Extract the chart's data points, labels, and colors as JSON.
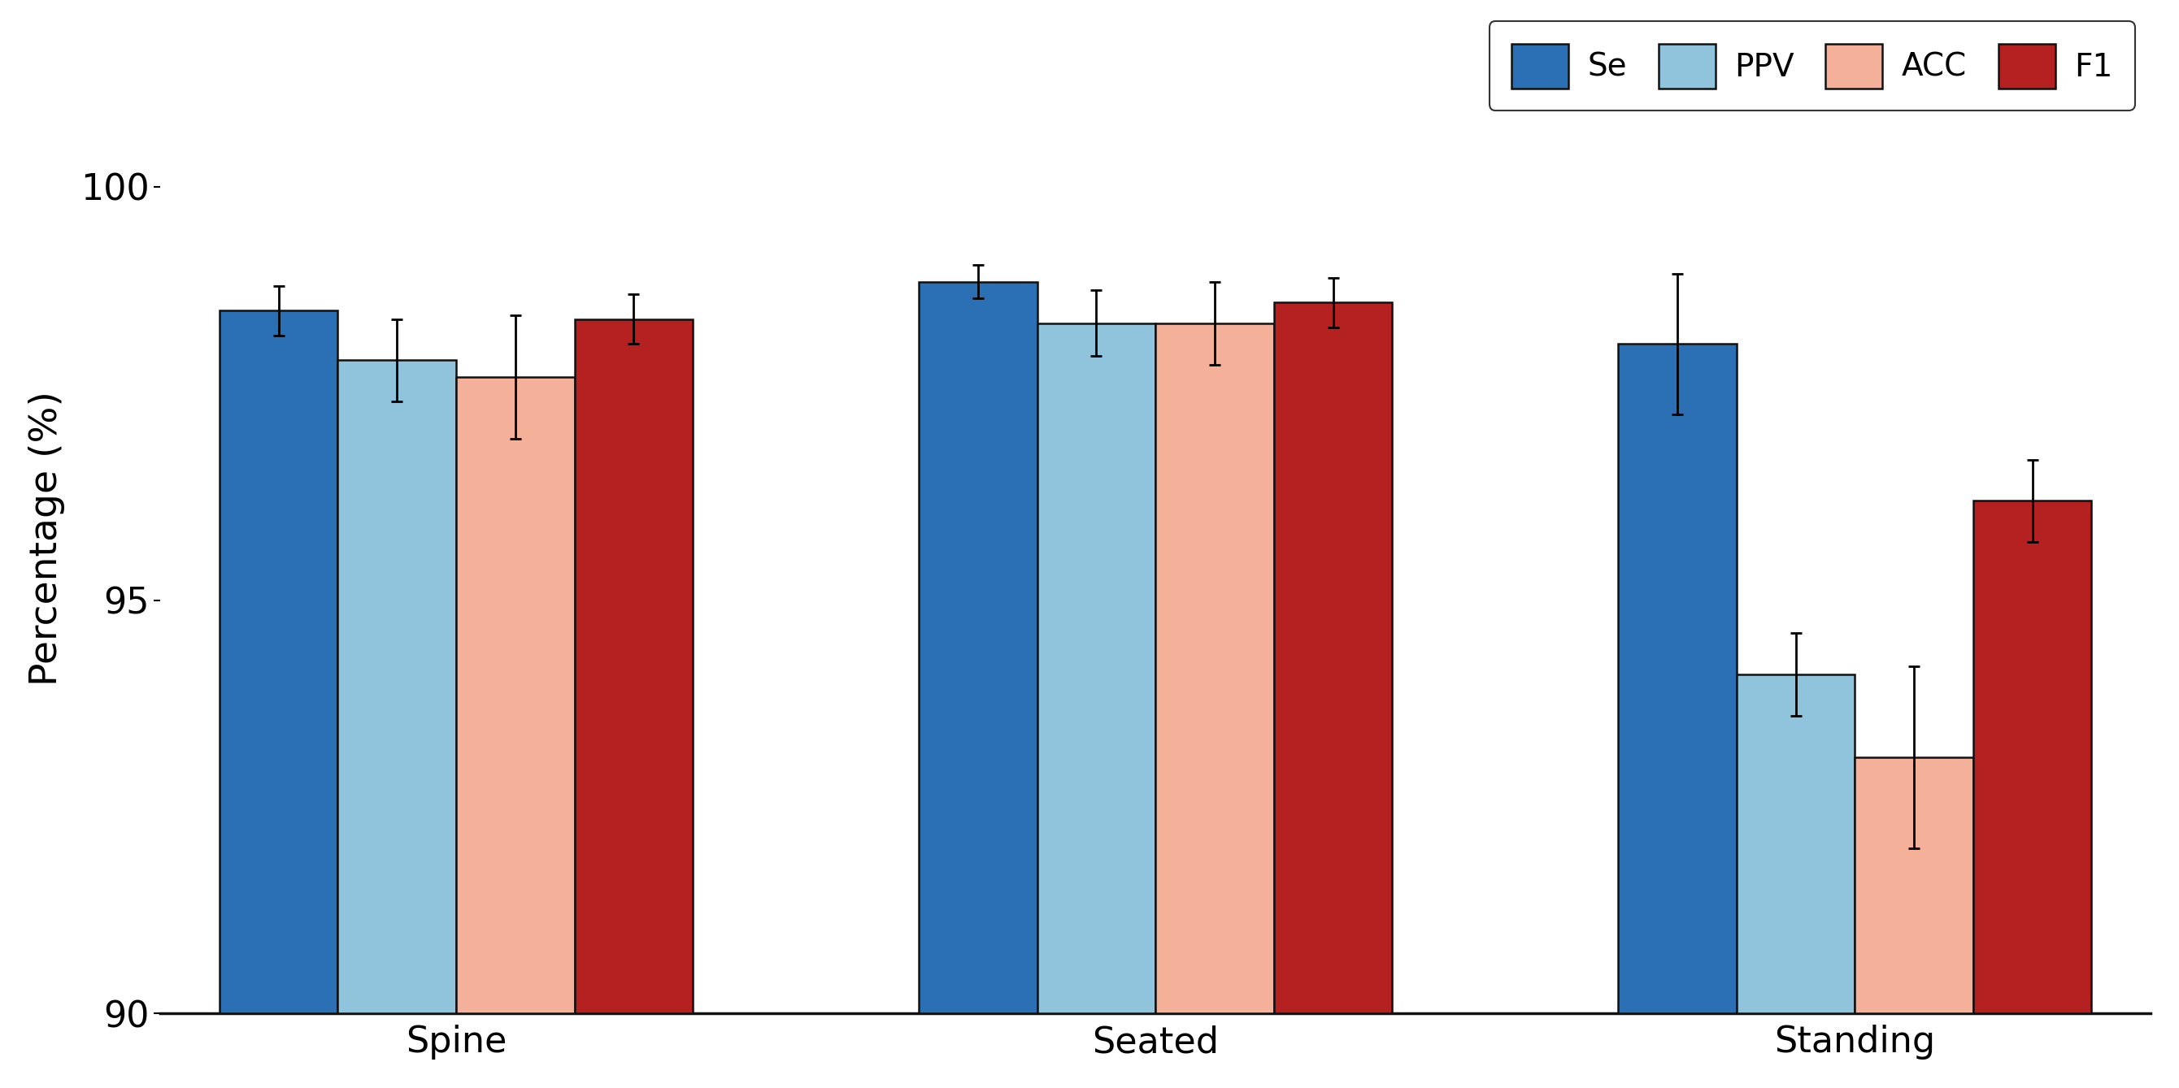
{
  "groups": [
    "Spine",
    "Seated",
    "Standing"
  ],
  "series": [
    "Se",
    "PPV",
    "ACC",
    "F1"
  ],
  "values": [
    [
      98.5,
      97.9,
      97.7,
      98.4
    ],
    [
      98.85,
      98.35,
      98.35,
      98.6
    ],
    [
      98.1,
      94.1,
      93.1,
      96.2
    ]
  ],
  "errors": [
    [
      0.3,
      0.5,
      0.75,
      0.3
    ],
    [
      0.2,
      0.4,
      0.5,
      0.3
    ],
    [
      0.85,
      0.5,
      1.1,
      0.5
    ]
  ],
  "colors": [
    "#2B6FB5",
    "#90C4DC",
    "#F5B09A",
    "#B52020"
  ],
  "ylabel": "Percentage (%)",
  "ylim": [
    90,
    101.5
  ],
  "yticks": [
    90,
    95,
    100
  ],
  "bar_width": 0.22,
  "edgecolor": "#111111",
  "legend_labels": [
    "Se",
    "PPV",
    "ACC",
    "F1"
  ],
  "background_color": "#ffffff",
  "capsize": 5,
  "elinewidth": 2.0,
  "capthick": 2.0,
  "bar_linewidth": 1.8
}
